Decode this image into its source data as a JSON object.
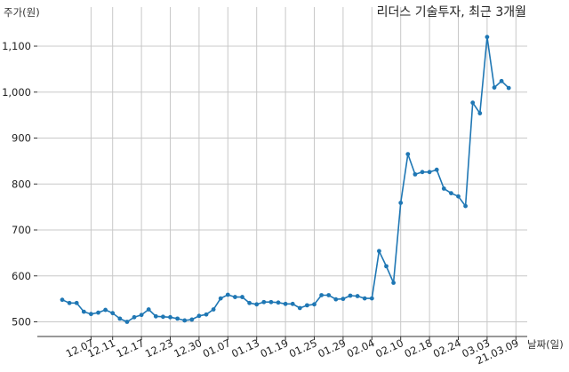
{
  "chart_data": {
    "type": "line",
    "title": "리더스 기술투자, 최근 3개월",
    "xlabel": "날짜(일)",
    "ylabel": "주가(원)",
    "ylim": [
      470,
      1160
    ],
    "yticks": [
      500,
      600,
      700,
      800,
      900,
      1000,
      1100
    ],
    "ytick_labels": [
      "500",
      "600",
      "700",
      "800",
      "900",
      "1,000",
      "1,100"
    ],
    "grid": true,
    "line_color": "#1f77b4",
    "xtick_labels": [
      "12.07",
      "12.11",
      "12.17",
      "12.23",
      "12.30",
      "01.07",
      "01.13",
      "01.19",
      "01.25",
      "01.29",
      "02.04",
      "02.10",
      "02.18",
      "02.24",
      "03.03",
      "21.03.09"
    ],
    "xtick_index": [
      4,
      7,
      11,
      15,
      19,
      23,
      27,
      31,
      35,
      39,
      43,
      47,
      51,
      55,
      59,
      63
    ],
    "values": [
      548,
      541,
      541,
      522,
      517,
      520,
      526,
      519,
      507,
      500,
      510,
      515,
      527,
      512,
      511,
      510,
      507,
      503,
      505,
      513,
      516,
      527,
      551,
      559,
      554,
      554,
      541,
      538,
      543,
      543,
      542,
      539,
      539,
      530,
      536,
      538,
      558,
      558,
      549,
      550,
      557,
      556,
      551,
      551,
      654,
      621,
      585,
      759,
      865,
      821,
      826,
      826,
      831,
      790,
      780,
      773,
      752,
      977,
      954,
      1120,
      1010,
      1024,
      1009
    ]
  }
}
